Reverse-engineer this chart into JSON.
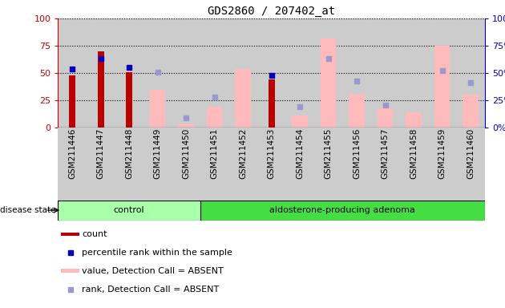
{
  "title": "GDS2860 / 207402_at",
  "samples": [
    "GSM211446",
    "GSM211447",
    "GSM211448",
    "GSM211449",
    "GSM211450",
    "GSM211451",
    "GSM211452",
    "GSM211453",
    "GSM211454",
    "GSM211455",
    "GSM211456",
    "GSM211457",
    "GSM211458",
    "GSM211459",
    "GSM211460"
  ],
  "count_values": [
    48,
    70,
    51,
    null,
    null,
    null,
    null,
    44,
    null,
    null,
    null,
    null,
    null,
    null,
    null
  ],
  "percentile_values": [
    54,
    63,
    55,
    null,
    null,
    null,
    null,
    48,
    null,
    null,
    null,
    null,
    null,
    null,
    null
  ],
  "absent_value_bars": [
    null,
    null,
    null,
    35,
    3,
    19,
    54,
    null,
    11,
    82,
    31,
    18,
    14,
    75,
    30
  ],
  "absent_rank_markers": [
    null,
    null,
    null,
    51,
    9,
    28,
    null,
    null,
    19,
    63,
    43,
    21,
    null,
    52,
    41
  ],
  "control_range": [
    0,
    4
  ],
  "adenoma_range": [
    5,
    14
  ],
  "ylim": [
    0,
    100
  ],
  "yticks": [
    0,
    25,
    50,
    75,
    100
  ],
  "bar_color_red": "#bb0000",
  "bar_color_pink": "#ffbbbb",
  "marker_color_blue": "#0000bb",
  "marker_color_lightblue": "#9999cc",
  "control_bg": "#aaffaa",
  "adenoma_bg": "#44dd44",
  "col_bg": "#cccccc",
  "left_axis_color": "#cc0000",
  "right_axis_color": "#0000cc",
  "grid_color": "#000000",
  "bg_white": "#ffffff"
}
